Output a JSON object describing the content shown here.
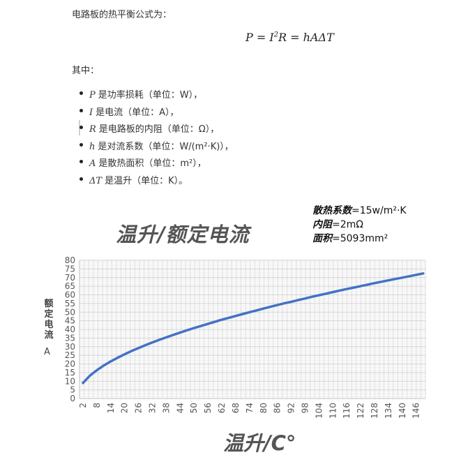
{
  "doc": {
    "intro": "电路板的热平衡公式为：",
    "formula_lhs": "P",
    "formula_eq1": " = ",
    "formula_i": "I",
    "formula_exp": "2",
    "formula_r": "R",
    "formula_eq2": " = ",
    "formula_rhs": "hAΔT",
    "where": "其中：",
    "items": [
      {
        "sym": "P",
        "text": "是功率损耗（单位：W），"
      },
      {
        "sym": "I",
        "text": "是电流（单位：A），"
      },
      {
        "sym": "R",
        "text": "是电路板的内阻（单位：Ω），"
      },
      {
        "sym": "h",
        "text": "是对流系数（单位：W/(m²·K)），"
      },
      {
        "sym": "A",
        "text": "是散热面积（单位：m²），"
      },
      {
        "sym": "ΔT",
        "text": "是温升（单位：K）。"
      }
    ]
  },
  "params": [
    {
      "key": "散热系数",
      "value": "=15w/m²·K"
    },
    {
      "key": "内阻",
      "value": "=2mΩ"
    },
    {
      "key": "面积",
      "value": "=5093mm²"
    }
  ],
  "chart_data": {
    "type": "line",
    "title": "温升/额定电流",
    "xlabel": "温升/C°",
    "ylabel": "额定电流",
    "yunit": "A",
    "ylim": [
      0,
      80
    ],
    "yticks": [
      0,
      5,
      10,
      15,
      20,
      25,
      30,
      35,
      40,
      45,
      50,
      55,
      60,
      65,
      70,
      75,
      80
    ],
    "xticks": [
      2,
      8,
      14,
      20,
      26,
      32,
      38,
      44,
      50,
      56,
      62,
      68,
      74,
      80,
      86,
      92,
      98,
      104,
      110,
      116,
      122,
      128,
      134,
      140,
      146
    ],
    "grid": true,
    "line_color": "#4472C4",
    "series": [
      {
        "x": [
          2,
          5,
          8,
          11,
          14,
          17,
          20,
          23,
          26,
          29,
          32,
          35,
          38,
          41,
          44,
          47,
          50,
          53,
          56,
          59,
          62,
          65,
          68,
          71,
          74,
          77,
          80,
          83,
          86,
          89,
          92,
          95,
          98,
          101,
          104,
          107,
          110,
          113,
          116,
          119,
          122,
          125,
          128,
          131,
          134,
          137,
          140,
          143,
          146,
          149
        ],
        "values": [
          9.0,
          13.2,
          16.4,
          19.1,
          21.5,
          23.6,
          25.6,
          27.5,
          29.2,
          30.9,
          32.5,
          34.0,
          35.4,
          36.8,
          38.2,
          39.5,
          40.8,
          42.0,
          43.2,
          44.4,
          45.6,
          46.7,
          47.8,
          48.9,
          50.0,
          51.0,
          52.1,
          53.1,
          54.1,
          55.1,
          56.0,
          57.0,
          57.9,
          58.9,
          59.8,
          60.7,
          61.6,
          62.5,
          63.4,
          64.2,
          65.1,
          65.9,
          66.8,
          67.6,
          68.4,
          69.2,
          70.0,
          70.8,
          71.6,
          72.4
        ]
      }
    ]
  }
}
